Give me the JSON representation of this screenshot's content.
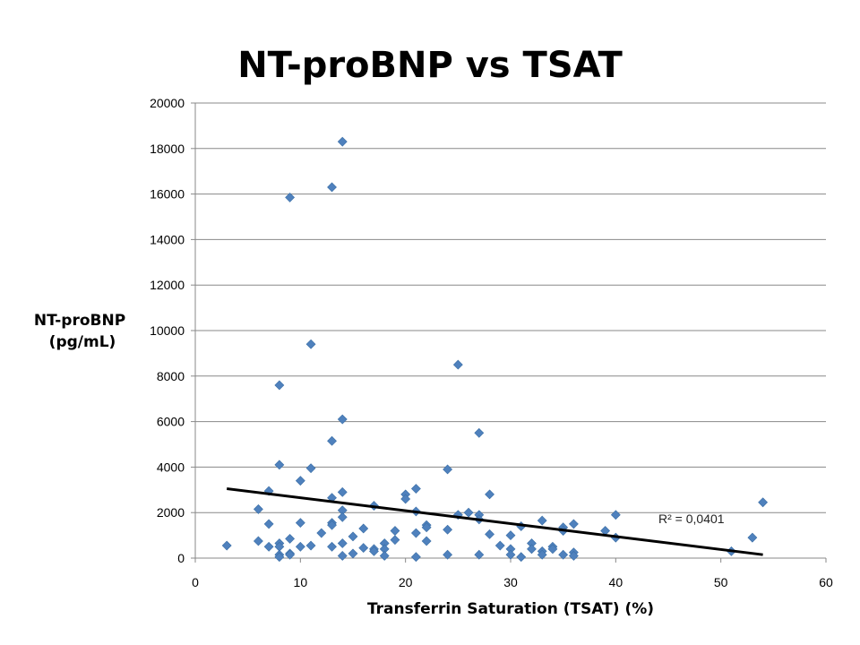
{
  "chart_data": {
    "type": "scatter",
    "title": "NT-proBNP vs TSAT",
    "xlabel": "Transferrin Saturation (TSAT) (%)",
    "ylabel_lines": [
      "NT-proBNP",
      "(pg/mL)"
    ],
    "xlim": [
      0,
      60
    ],
    "ylim": [
      0,
      20000
    ],
    "x_ticks": [
      0,
      10,
      20,
      30,
      40,
      50,
      60
    ],
    "y_ticks": [
      0,
      2000,
      4000,
      6000,
      8000,
      10000,
      12000,
      14000,
      16000,
      18000,
      20000
    ],
    "grid": "horizontal",
    "marker": "diamond",
    "marker_color": "#4F81BD",
    "trendline": {
      "type": "linear",
      "x": [
        3,
        54
      ],
      "y": [
        3050,
        150
      ],
      "color": "#000000",
      "label": "R² = 0,0401"
    },
    "points": [
      [
        3,
        550
      ],
      [
        6,
        2150
      ],
      [
        6,
        750
      ],
      [
        7,
        2950
      ],
      [
        7,
        1500
      ],
      [
        7,
        500
      ],
      [
        8,
        7600
      ],
      [
        8,
        4100
      ],
      [
        8,
        650
      ],
      [
        8,
        500
      ],
      [
        8,
        150
      ],
      [
        8,
        50
      ],
      [
        9,
        15850
      ],
      [
        9,
        850
      ],
      [
        9,
        200
      ],
      [
        9,
        150
      ],
      [
        10,
        3400
      ],
      [
        10,
        1550
      ],
      [
        10,
        500
      ],
      [
        11,
        9400
      ],
      [
        11,
        3950
      ],
      [
        11,
        550
      ],
      [
        12,
        1100
      ],
      [
        13,
        16300
      ],
      [
        13,
        5150
      ],
      [
        13,
        2650
      ],
      [
        13,
        1550
      ],
      [
        13,
        1450
      ],
      [
        13,
        500
      ],
      [
        14,
        18300
      ],
      [
        14,
        6100
      ],
      [
        14,
        2900
      ],
      [
        14,
        2100
      ],
      [
        14,
        1800
      ],
      [
        14,
        650
      ],
      [
        14,
        100
      ],
      [
        15,
        950
      ],
      [
        15,
        200
      ],
      [
        16,
        1300
      ],
      [
        16,
        450
      ],
      [
        17,
        2300
      ],
      [
        17,
        400
      ],
      [
        17,
        300
      ],
      [
        18,
        650
      ],
      [
        18,
        400
      ],
      [
        18,
        100
      ],
      [
        19,
        1200
      ],
      [
        19,
        800
      ],
      [
        20,
        2800
      ],
      [
        20,
        2600
      ],
      [
        21,
        3050
      ],
      [
        21,
        2050
      ],
      [
        21,
        1100
      ],
      [
        21,
        50
      ],
      [
        22,
        1450
      ],
      [
        22,
        1350
      ],
      [
        22,
        750
      ],
      [
        24,
        3900
      ],
      [
        24,
        1250
      ],
      [
        24,
        150
      ],
      [
        25,
        8500
      ],
      [
        25,
        1900
      ],
      [
        26,
        2000
      ],
      [
        27,
        5500
      ],
      [
        27,
        1900
      ],
      [
        27,
        1700
      ],
      [
        27,
        150
      ],
      [
        28,
        2800
      ],
      [
        28,
        1050
      ],
      [
        29,
        550
      ],
      [
        30,
        1000
      ],
      [
        30,
        400
      ],
      [
        30,
        150
      ],
      [
        31,
        1400
      ],
      [
        31,
        50
      ],
      [
        32,
        650
      ],
      [
        32,
        400
      ],
      [
        33,
        1650
      ],
      [
        33,
        300
      ],
      [
        33,
        150
      ],
      [
        34,
        500
      ],
      [
        34,
        400
      ],
      [
        35,
        1350
      ],
      [
        35,
        1200
      ],
      [
        35,
        150
      ],
      [
        36,
        1500
      ],
      [
        36,
        250
      ],
      [
        36,
        100
      ],
      [
        39,
        1200
      ],
      [
        40,
        1900
      ],
      [
        40,
        900
      ],
      [
        51,
        300
      ],
      [
        53,
        900
      ],
      [
        54,
        2450
      ]
    ]
  }
}
